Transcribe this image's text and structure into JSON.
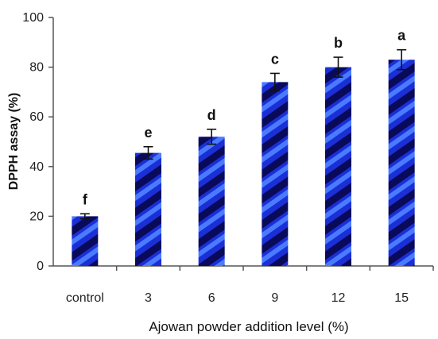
{
  "chart_data": {
    "type": "bar",
    "title": "",
    "xlabel": "Ajowan powder addition level  (%)",
    "ylabel": "DPPH assay (%)",
    "categories": [
      "control",
      "3",
      "6",
      "9",
      "12",
      "15"
    ],
    "values": [
      20,
      45.5,
      52,
      74,
      80,
      83
    ],
    "errors": [
      1,
      2.5,
      3,
      3.5,
      4,
      4
    ],
    "significance_labels": [
      "f",
      "e",
      "d",
      "c",
      "b",
      "a"
    ],
    "ylim": [
      0,
      100
    ],
    "yticks": [
      0,
      20,
      40,
      60,
      80,
      100
    ],
    "grid": false,
    "legend": "none",
    "bar_colors": {
      "dark": "#0a0a5a",
      "mid": "#1a2fd6",
      "light": "#4a7bff"
    }
  }
}
